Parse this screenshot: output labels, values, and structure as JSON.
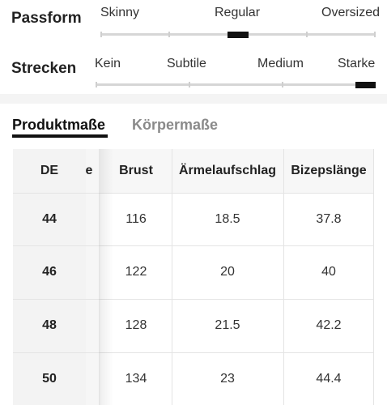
{
  "fit": {
    "label": "Passform",
    "options": [
      "Skinny",
      "Regular",
      "Oversized"
    ],
    "selected": "Regular"
  },
  "stretch": {
    "label": "Strecken",
    "options": [
      "Kein",
      "Subtile",
      "Medium",
      "Starke"
    ],
    "selected": "Starke"
  },
  "tabs": {
    "product": "Produktmaße",
    "body": "Körpermaße",
    "active": "product"
  },
  "table": {
    "sticky_header": "DE",
    "clipped_header": "e",
    "headers": [
      "Brust",
      "Ärmelaufschlag",
      "Bizepslänge"
    ],
    "rows": [
      {
        "size": "44",
        "values": [
          "116",
          "18.5",
          "37.8"
        ]
      },
      {
        "size": "46",
        "values": [
          "122",
          "20",
          "40"
        ]
      },
      {
        "size": "48",
        "values": [
          "128",
          "21.5",
          "42.2"
        ]
      },
      {
        "size": "50",
        "values": [
          "134",
          "23",
          "44.4"
        ]
      }
    ]
  },
  "colors": {
    "sticky_column_bg": "#f3f3f3",
    "header_bg": "#f7f7f7",
    "marker": "#111111",
    "track": "#d6d6d6"
  }
}
